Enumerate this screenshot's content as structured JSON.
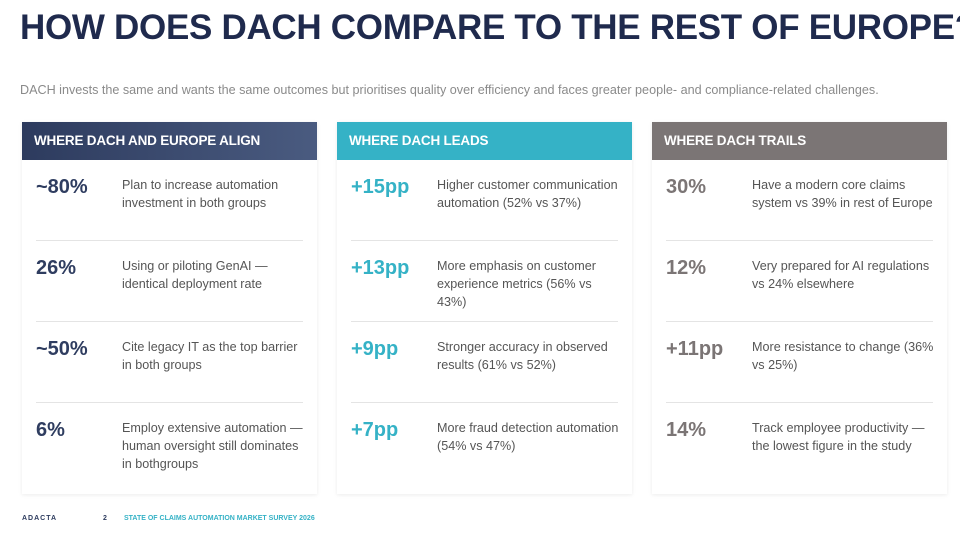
{
  "header": {
    "title": "HOW DOES DACH COMPARE TO THE REST OF EUROPE?",
    "subtitle": "DACH invests the same and wants the same outcomes but prioritises quality over efficiency and faces greater people- and compliance-related challenges."
  },
  "columns": [
    {
      "heading": "WHERE DACH AND EUROPE ALIGN",
      "items": [
        {
          "stat": "~80%",
          "text": "Plan to increase automation investment in both groups"
        },
        {
          "stat": "26%",
          "text": "Using or piloting GenAI — identical deployment rate"
        },
        {
          "stat": "~50%",
          "text": "Cite legacy IT as the top barrier in both groups"
        },
        {
          "stat": "6%",
          "text": "Employ extensive automation — human oversight still dominates in bothgroups"
        }
      ]
    },
    {
      "heading": "WHERE DACH LEADS",
      "items": [
        {
          "stat": "+15pp",
          "text": "Higher customer communication automation (52% vs 37%)"
        },
        {
          "stat": "+13pp",
          "text": "More emphasis on customer experience metrics (56% vs 43%)"
        },
        {
          "stat": "+9pp",
          "text": "Stronger accuracy in observed results (61% vs 52%)"
        },
        {
          "stat": "+7pp",
          "text": "More fraud detection automation (54% vs 47%)"
        }
      ]
    },
    {
      "heading": "WHERE DACH TRAILS",
      "items": [
        {
          "stat": "30%",
          "text": "Have a modern core claims system vs 39% in rest of Europe"
        },
        {
          "stat": "12%",
          "text": "Very prepared for AI regulations vs 24% elsewhere"
        },
        {
          "stat": "+11pp",
          "text": "More resistance to change (36% vs 25%)"
        },
        {
          "stat": "14%",
          "text": "Track employee productivity — the lowest figure in the study"
        }
      ]
    }
  ],
  "footer": {
    "logo": "ADACTA",
    "page": "2",
    "survey": "STATE OF CLAIMS AUTOMATION MARKET SURVEY 2026"
  }
}
